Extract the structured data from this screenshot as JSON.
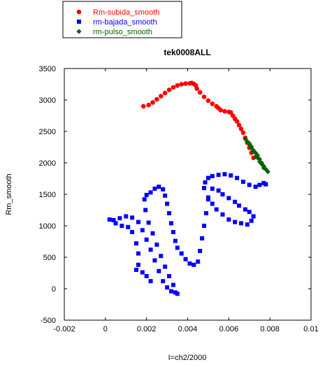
{
  "chart_data": {
    "type": "scatter",
    "title": "tek0008ALL",
    "xlabel": "I=ch2/2000",
    "ylabel": "Rm_smooth",
    "xlim": [
      -0.002,
      0.01
    ],
    "ylim": [
      -500,
      3500
    ],
    "xticks": [
      -0.002,
      0,
      0.002,
      0.004,
      0.006,
      0.008,
      0.01
    ],
    "xtick_labels": [
      "-0.002",
      "0",
      "0.002",
      "0.004",
      "0.006",
      "0.008",
      "0.01"
    ],
    "yticks": [
      -500,
      0,
      500,
      1000,
      1500,
      2000,
      2500,
      3000,
      3500
    ],
    "ytick_labels": [
      "-500",
      "0",
      "500",
      "1000",
      "1500",
      "2000",
      "2500",
      "3000",
      "3500"
    ],
    "grid": false,
    "legend_position": "top-left, outside plot",
    "series": [
      {
        "name": "Rm-subida_smooth",
        "color": "#ff0000",
        "marker": "circle",
        "points": [
          [
            0.00185,
            2900
          ],
          [
            0.0021,
            2920
          ],
          [
            0.0023,
            2960
          ],
          [
            0.0025,
            3010
          ],
          [
            0.0027,
            3060
          ],
          [
            0.0029,
            3110
          ],
          [
            0.0031,
            3160
          ],
          [
            0.0033,
            3200
          ],
          [
            0.0035,
            3230
          ],
          [
            0.0037,
            3250
          ],
          [
            0.0039,
            3260
          ],
          [
            0.0041,
            3265
          ],
          [
            0.0042,
            3270
          ],
          [
            0.0043,
            3255
          ],
          [
            0.0044,
            3230
          ],
          [
            0.00445,
            3180
          ],
          [
            0.0046,
            3120
          ],
          [
            0.0048,
            3050
          ],
          [
            0.005,
            2990
          ],
          [
            0.0052,
            2940
          ],
          [
            0.0054,
            2900
          ],
          [
            0.0055,
            2870
          ],
          [
            0.0056,
            2840
          ],
          [
            0.0058,
            2820
          ],
          [
            0.006,
            2810
          ],
          [
            0.0061,
            2800
          ],
          [
            0.0062,
            2750
          ],
          [
            0.0063,
            2700
          ],
          [
            0.0064,
            2660
          ],
          [
            0.0065,
            2600
          ],
          [
            0.0066,
            2540
          ],
          [
            0.0067,
            2480
          ],
          [
            0.0068,
            2400
          ],
          [
            0.0069,
            2320
          ],
          [
            0.007,
            2240
          ],
          [
            0.0071,
            2160
          ],
          [
            0.0072,
            2080
          ]
        ]
      },
      {
        "name": "rm-bajada_smooth",
        "color": "#0000ff",
        "marker": "square",
        "points": [
          [
            0.0078,
            1660
          ],
          [
            0.0077,
            1680
          ],
          [
            0.0075,
            1650
          ],
          [
            0.0073,
            1620
          ],
          [
            0.007,
            1650
          ],
          [
            0.0067,
            1700
          ],
          [
            0.0064,
            1760
          ],
          [
            0.0061,
            1800
          ],
          [
            0.0058,
            1820
          ],
          [
            0.0055,
            1810
          ],
          [
            0.0052,
            1790
          ],
          [
            0.005,
            1760
          ],
          [
            0.00485,
            1690
          ],
          [
            0.0048,
            1600
          ],
          [
            0.005,
            1450
          ],
          [
            0.0052,
            1350
          ],
          [
            0.0054,
            1260
          ],
          [
            0.0057,
            1180
          ],
          [
            0.006,
            1100
          ],
          [
            0.0063,
            1060
          ],
          [
            0.0066,
            1040
          ],
          [
            0.0069,
            1020
          ],
          [
            0.0071,
            1080
          ],
          [
            0.0072,
            1150
          ],
          [
            0.007,
            1220
          ],
          [
            0.0068,
            1260
          ],
          [
            0.0065,
            1320
          ],
          [
            0.0063,
            1380
          ],
          [
            0.006,
            1440
          ],
          [
            0.0057,
            1500
          ],
          [
            0.0055,
            1560
          ],
          [
            0.0052,
            1590
          ],
          [
            0.005,
            1420
          ],
          [
            0.0049,
            1200
          ],
          [
            0.0048,
            1000
          ],
          [
            0.0047,
            800
          ],
          [
            0.0046,
            600
          ],
          [
            0.0045,
            430
          ],
          [
            0.0043,
            380
          ],
          [
            0.0041,
            400
          ],
          [
            0.0039,
            470
          ],
          [
            0.0037,
            560
          ],
          [
            0.0035,
            650
          ],
          [
            0.0034,
            760
          ],
          [
            0.0033,
            900
          ],
          [
            0.0032,
            1040
          ],
          [
            0.0031,
            1200
          ],
          [
            0.003,
            1350
          ],
          [
            0.0029,
            1480
          ],
          [
            0.0028,
            1580
          ],
          [
            0.0026,
            1620
          ],
          [
            0.0024,
            1590
          ],
          [
            0.0022,
            1530
          ],
          [
            0.002,
            1490
          ],
          [
            0.0019,
            1420
          ],
          [
            0.00195,
            1250
          ],
          [
            0.0021,
            1050
          ],
          [
            0.0023,
            880
          ],
          [
            0.0025,
            700
          ],
          [
            0.0027,
            520
          ],
          [
            0.0029,
            350
          ],
          [
            0.0031,
            200
          ],
          [
            0.0033,
            60
          ],
          [
            0.0034,
            -60
          ],
          [
            0.0035,
            -80
          ],
          [
            0.0032,
            -40
          ],
          [
            0.003,
            20
          ],
          [
            0.0028,
            120
          ],
          [
            0.0026,
            280
          ],
          [
            0.0024,
            450
          ],
          [
            0.0022,
            620
          ],
          [
            0.002,
            780
          ],
          [
            0.0018,
            930
          ],
          [
            0.0016,
            1060
          ],
          [
            0.0013,
            1130
          ],
          [
            0.001,
            1150
          ],
          [
            0.0007,
            1120
          ],
          [
            0.0004,
            1090
          ],
          [
            0.0002,
            1100
          ],
          [
            0.0005,
            1040
          ],
          [
            0.0008,
            1000
          ],
          [
            0.0011,
            980
          ],
          [
            0.0013,
            900
          ],
          [
            0.0015,
            720
          ],
          [
            0.0016,
            560
          ],
          [
            0.0016,
            380
          ],
          [
            0.0015,
            300
          ],
          [
            0.0018,
            260
          ],
          [
            0.002,
            200
          ],
          [
            0.0022,
            120
          ]
        ]
      },
      {
        "name": "rm-pulso_smooth",
        "color": "#006400",
        "marker": "diamond",
        "points": [
          [
            0.0068,
            2380
          ],
          [
            0.0069,
            2340
          ],
          [
            0.007,
            2290
          ],
          [
            0.0071,
            2240
          ],
          [
            0.0072,
            2200
          ],
          [
            0.0073,
            2160
          ],
          [
            0.0074,
            2120
          ],
          [
            0.0075,
            2060
          ],
          [
            0.0076,
            2000
          ],
          [
            0.0077,
            1950
          ],
          [
            0.0078,
            1900
          ],
          [
            0.0079,
            1860
          ],
          [
            0.0072,
            2180
          ],
          [
            0.0074,
            2080
          ],
          [
            0.0076,
            1980
          ],
          [
            0.0073,
            2100
          ],
          [
            0.0075,
            2020
          ],
          [
            0.0077,
            1920
          ],
          [
            0.0071,
            2260
          ],
          [
            0.007,
            2310
          ]
        ]
      }
    ]
  }
}
